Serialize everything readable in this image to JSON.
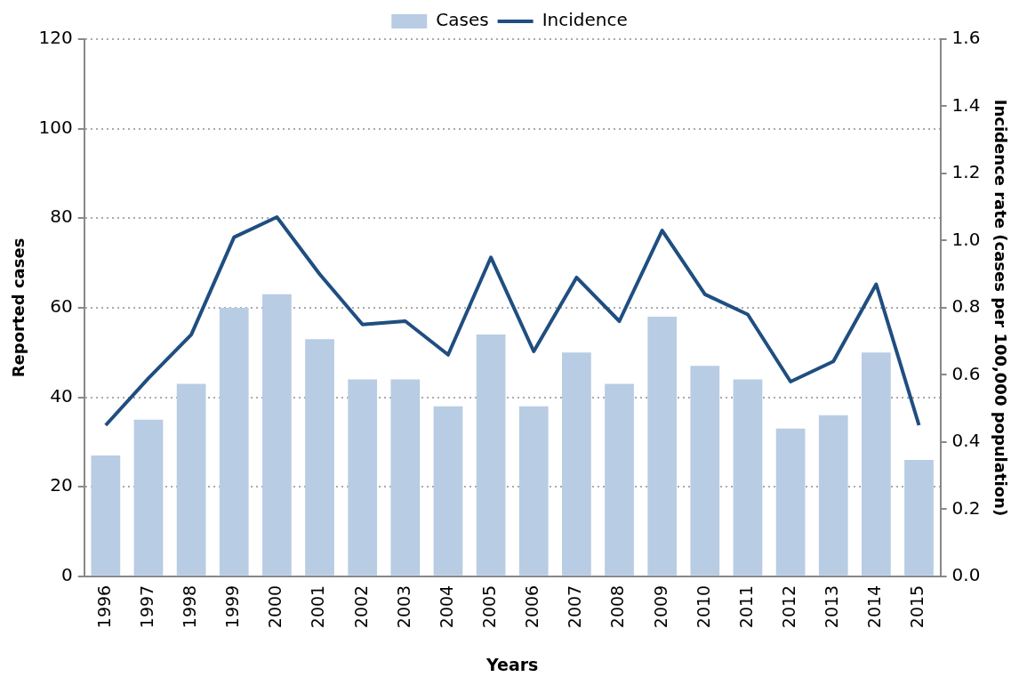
{
  "chart_data": {
    "type": "bar",
    "xlabel": "Years",
    "ylabel": "Reported cases",
    "y2label": "Incidence rate (cases per 100,000 population)",
    "categories": [
      "1996",
      "1997",
      "1998",
      "1999",
      "2000",
      "2001",
      "2002",
      "2003",
      "2004",
      "2005",
      "2006",
      "2007",
      "2008",
      "2009",
      "2010",
      "2011",
      "2012",
      "2013",
      "2014",
      "2015"
    ],
    "series": [
      {
        "name": "Cases",
        "color": "#b8cce4",
        "values": [
          27,
          35,
          43,
          60,
          63,
          53,
          44,
          44,
          38,
          54,
          38,
          50,
          43,
          58,
          47,
          44,
          33,
          36,
          50,
          26
        ]
      },
      {
        "name": "Incidence",
        "type": "line",
        "axis": "y2",
        "color": "#1f4e80",
        "values": [
          0.45,
          0.59,
          0.72,
          1.01,
          1.07,
          0.9,
          0.75,
          0.76,
          0.66,
          0.95,
          0.67,
          0.89,
          0.76,
          1.03,
          0.84,
          0.78,
          0.58,
          0.64,
          0.87,
          0.45
        ]
      }
    ],
    "ylim": [
      0,
      120
    ],
    "yticks": [
      0,
      20,
      40,
      60,
      80,
      100,
      120
    ],
    "y2lim": [
      0,
      1.6
    ],
    "y2ticks": [
      {
        "value": 0,
        "label": "0.0"
      },
      {
        "value": 0.2,
        "label": "0.2"
      },
      {
        "value": 0.4,
        "label": "0.4"
      },
      {
        "value": 0.6,
        "label": "0.6"
      },
      {
        "value": 0.8,
        "label": "0.8"
      },
      {
        "value": 1.0,
        "label": "1.0"
      },
      {
        "value": 1.2,
        "label": "1.2"
      },
      {
        "value": 1.4,
        "label": "1.4"
      },
      {
        "value": 1.6,
        "label": "1.6"
      }
    ],
    "grid": "y",
    "legend": "top",
    "marker": "none",
    "line_style": "solid"
  }
}
